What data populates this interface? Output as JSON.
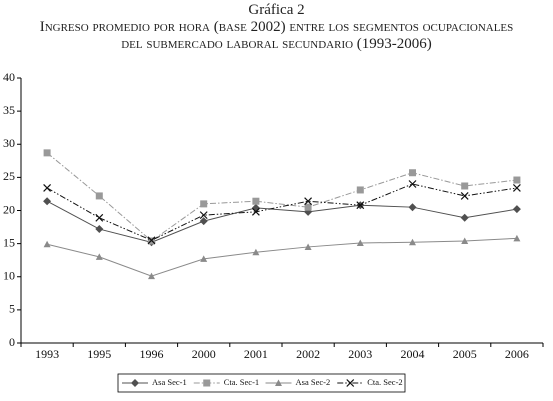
{
  "chart_data": {
    "type": "line",
    "title": "Gráfica 2",
    "subtitle": "Ingreso promedio por hora (base 2002) entre los segmentos ocupacionales del submercado laboral secundario (1993-2006)",
    "categories": [
      "1993",
      "1995",
      "1996",
      "2000",
      "2001",
      "2002",
      "2003",
      "2004",
      "2005",
      "2006"
    ],
    "series": [
      {
        "name": "Asa Sec-1",
        "color": "#505050",
        "marker": "diamond",
        "line": "solid",
        "values": [
          21.4,
          17.2,
          15.2,
          18.4,
          20.4,
          19.8,
          20.8,
          20.5,
          18.9,
          20.2
        ]
      },
      {
        "name": "Cta. Sec-1",
        "color": "#999999",
        "marker": "square",
        "line": "dashdot",
        "values": [
          28.7,
          22.2,
          15.4,
          21.0,
          21.4,
          20.5,
          23.1,
          25.7,
          23.7,
          24.6
        ]
      },
      {
        "name": "Asa Sec-2",
        "color": "#8a8a8a",
        "marker": "triangle",
        "line": "solid",
        "values": [
          14.9,
          13.0,
          10.1,
          12.7,
          13.7,
          14.5,
          15.1,
          15.2,
          15.4,
          15.8
        ]
      },
      {
        "name": "Cta. Sec-2",
        "color": "#111111",
        "marker": "x",
        "line": "dashdotdot",
        "values": [
          23.4,
          18.9,
          15.5,
          19.3,
          19.8,
          21.4,
          20.8,
          24.0,
          22.2,
          23.4
        ]
      }
    ],
    "ylim": [
      0,
      40
    ],
    "yticks": [
      0,
      5,
      10,
      15,
      20,
      25,
      30,
      35,
      40
    ],
    "grid": false,
    "legend": "bottom"
  }
}
